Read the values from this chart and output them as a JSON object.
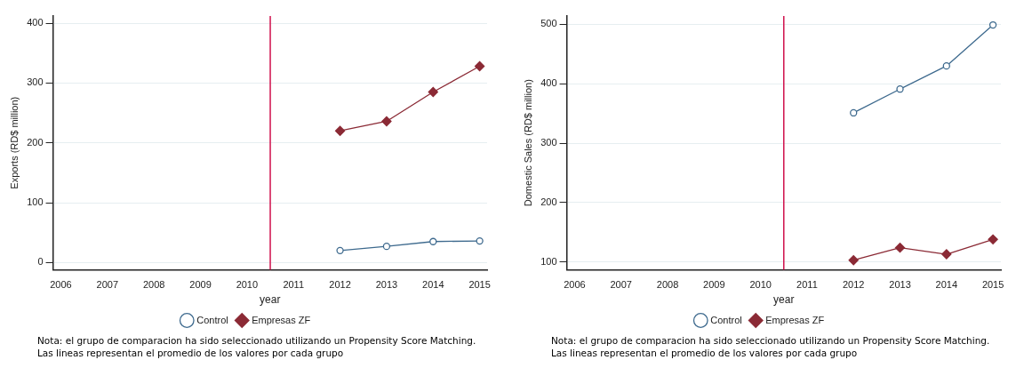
{
  "chart_data": [
    {
      "type": "line",
      "xlabel": "year",
      "ylabel": "Exports (RD$ million)",
      "x": [
        2012,
        2013,
        2014,
        2015
      ],
      "series": [
        {
          "name": "Control",
          "color": "#3e6a8e",
          "marker": "circle",
          "values": [
            20,
            27,
            35,
            36
          ]
        },
        {
          "name": "Empresas ZF",
          "color": "#8b2a35",
          "marker": "diamond",
          "values": [
            220,
            236,
            285,
            328
          ]
        }
      ],
      "xlim": [
        2005.83,
        2015.16
      ],
      "xticks": [
        2006,
        2007,
        2008,
        2009,
        2010,
        2011,
        2012,
        2013,
        2014,
        2015
      ],
      "ylim": [
        -12,
        412
      ],
      "yticks": [
        0,
        100,
        200,
        300,
        400
      ],
      "ref_lines": [
        {
          "axis": "x",
          "value": 2010.5,
          "color": "#d0104c"
        }
      ],
      "grid": "y",
      "legend": "bottom",
      "annotations": [
        "Nota: el grupo de comparacion ha sido seleccionado utilizando un Propensity Score Matching. Las lineas representan el promedio de los valores por cada grupo"
      ]
    },
    {
      "type": "line",
      "xlabel": "year",
      "ylabel": "Domestic Sales (RD$ million)",
      "x": [
        2012,
        2013,
        2014,
        2015
      ],
      "series": [
        {
          "name": "Control",
          "color": "#3e6a8e",
          "marker": "circle",
          "values": [
            351,
            391,
            430,
            499
          ]
        },
        {
          "name": "Empresas ZF",
          "color": "#8b2a35",
          "marker": "diamond",
          "values": [
            103,
            124,
            113,
            138
          ]
        }
      ],
      "xlim": [
        2005.83,
        2015.17
      ],
      "xticks": [
        2006,
        2007,
        2008,
        2009,
        2010,
        2011,
        2012,
        2013,
        2014,
        2015
      ],
      "ylim": [
        87,
        514
      ],
      "yticks": [
        100,
        200,
        300,
        400,
        500
      ],
      "ref_lines": [
        {
          "axis": "x",
          "value": 2010.5,
          "color": "#d0104c"
        }
      ],
      "grid": "y",
      "legend": "bottom",
      "annotations": [
        "Nota: el grupo de comparacion ha sido seleccionado utilizando un Propensity Score Matching. Las lineas representan el promedio de los valores por cada grupo"
      ]
    }
  ]
}
